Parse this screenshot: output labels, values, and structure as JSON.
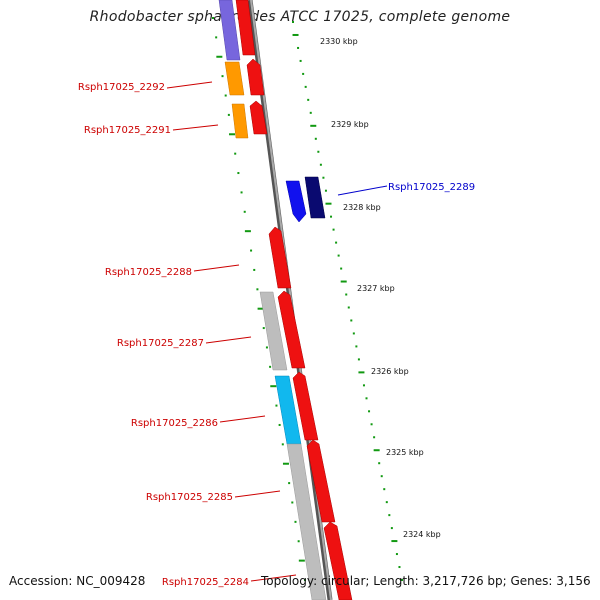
{
  "title": "Rhodobacter sphaeroides ATCC 17025, complete genome",
  "accession_text": "Accession: NC_009428",
  "summary_text": "Topology: circular; Length: 3,217,726 bp; Genes: 3,156",
  "colors": {
    "forward_gene": "#ee1111",
    "grey_gene": "#bdbdbd",
    "orange_gene": "#ff9900",
    "cyan_gene": "#11b8ee",
    "blue_gene": "#1111ee",
    "navy_gene": "#0a0a70",
    "purple_gene": "#7766dd",
    "label_red": "#cc0000",
    "label_blue": "#0000cc",
    "tick_green": "#119911",
    "backbone": "#888888"
  },
  "gene_labels": [
    {
      "text": "Rsph17025_2292",
      "color": "red"
    },
    {
      "text": "Rsph17025_2291",
      "color": "red"
    },
    {
      "text": "Rsph17025_2289",
      "color": "blue"
    },
    {
      "text": "Rsph17025_2288",
      "color": "red"
    },
    {
      "text": "Rsph17025_2287",
      "color": "red"
    },
    {
      "text": "Rsph17025_2286",
      "color": "red"
    },
    {
      "text": "Rsph17025_2285",
      "color": "red"
    },
    {
      "text": "Rsph17025_2284",
      "color": "red"
    }
  ],
  "kbp_labels": [
    "2330 kbp",
    "2329 kbp",
    "2328 kbp",
    "2327 kbp",
    "2326 kbp",
    "2325 kbp",
    "2324 kbp"
  ]
}
